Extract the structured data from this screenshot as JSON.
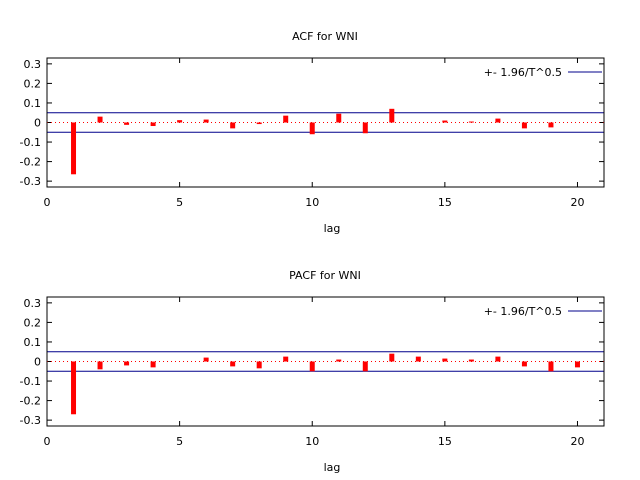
{
  "chart_data": [
    {
      "type": "bar",
      "title": "ACF for WNI",
      "xlabel": "lag",
      "ylabel": "",
      "xlim": [
        0,
        21
      ],
      "ylim": [
        -0.33,
        0.33
      ],
      "xticks": [
        0,
        5,
        10,
        15,
        20
      ],
      "xtick_labels": [
        "0",
        "5",
        "10",
        "15",
        "20"
      ],
      "yticks": [
        0.3,
        0.2,
        0.1,
        0,
        -0.1,
        -0.2,
        -0.3
      ],
      "ytick_labels": [
        "0.3",
        "0.2",
        "0.1",
        "0",
        "-0.1",
        "-0.2",
        "-0.3"
      ],
      "zero_line": "dotted",
      "grid": false,
      "legend_position": "top-right",
      "series": [
        {
          "name": "",
          "x": [
            1,
            2,
            3,
            4,
            5,
            6,
            7,
            8,
            9,
            10,
            11,
            12,
            13,
            14,
            15,
            16,
            17,
            18,
            19,
            20
          ],
          "values": [
            -0.265,
            0.03,
            -0.012,
            -0.018,
            0.012,
            0.015,
            -0.03,
            -0.008,
            0.035,
            -0.06,
            0.045,
            -0.055,
            0.07,
            0.0,
            0.01,
            0.005,
            0.02,
            -0.03,
            -0.025,
            0.0
          ]
        }
      ],
      "confidence_band": {
        "label": "+- 1.96/T^0.5",
        "value": 0.05
      },
      "colors": {
        "bars": "#ff0000",
        "band": "#00008b",
        "zero_line": "#ff0000",
        "axes": "#000000"
      }
    },
    {
      "type": "bar",
      "title": "PACF for WNI",
      "xlabel": "lag",
      "ylabel": "",
      "xlim": [
        0,
        21
      ],
      "ylim": [
        -0.33,
        0.33
      ],
      "xticks": [
        0,
        5,
        10,
        15,
        20
      ],
      "xtick_labels": [
        "0",
        "5",
        "10",
        "15",
        "20"
      ],
      "yticks": [
        0.3,
        0.2,
        0.1,
        0,
        -0.1,
        -0.2,
        -0.3
      ],
      "ytick_labels": [
        "0.3",
        "0.2",
        "0.1",
        "0",
        "-0.1",
        "-0.2",
        "-0.3"
      ],
      "zero_line": "dotted",
      "grid": false,
      "legend_position": "top-right",
      "series": [
        {
          "name": "",
          "x": [
            1,
            2,
            3,
            4,
            5,
            6,
            7,
            8,
            9,
            10,
            11,
            12,
            13,
            14,
            15,
            16,
            17,
            18,
            19,
            20
          ],
          "values": [
            -0.27,
            -0.04,
            -0.02,
            -0.03,
            0.0,
            0.02,
            -0.025,
            -0.035,
            0.025,
            -0.05,
            0.01,
            -0.05,
            0.04,
            0.025,
            0.015,
            0.01,
            0.025,
            -0.025,
            -0.05,
            -0.03
          ]
        }
      ],
      "confidence_band": {
        "label": "+- 1.96/T^0.5",
        "value": 0.05
      },
      "colors": {
        "bars": "#ff0000",
        "band": "#00008b",
        "zero_line": "#ff0000",
        "axes": "#000000"
      }
    }
  ]
}
